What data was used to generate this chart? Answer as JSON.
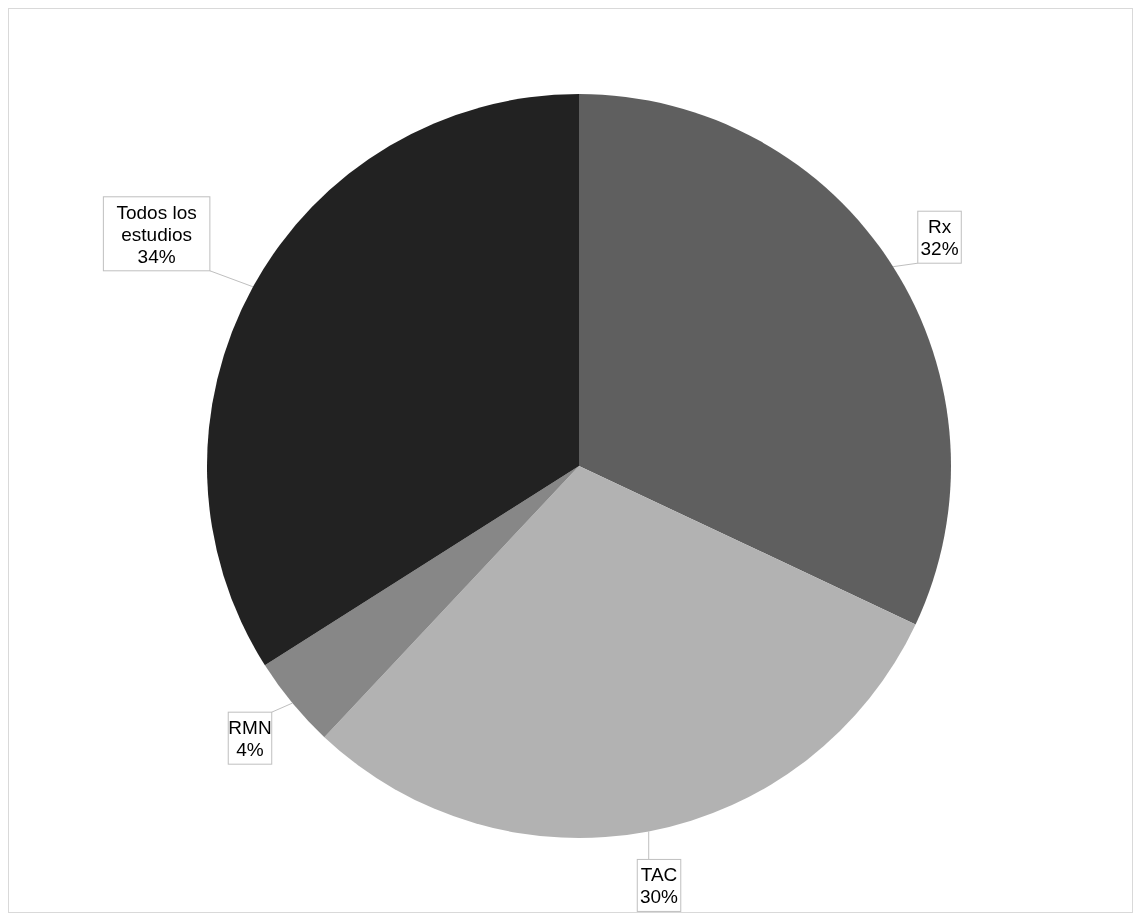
{
  "chart_data": {
    "type": "pie",
    "categories": [
      "Rx",
      "TAC",
      "RMN",
      "Todos los estudios"
    ],
    "values": [
      32,
      30,
      4,
      34
    ],
    "colors": [
      "#5f5f5f",
      "#b2b2b2",
      "#878787",
      "#222222"
    ],
    "value_labels": [
      "32%",
      "30%",
      "4%",
      "34%"
    ],
    "legend": false
  }
}
